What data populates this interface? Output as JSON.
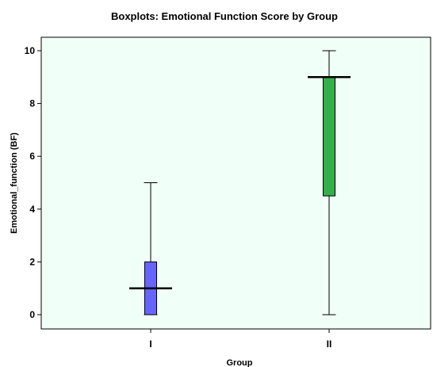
{
  "chart_data": {
    "type": "boxplot",
    "title": "Boxplots: Emotional Function Score by Group",
    "xlabel": "Group",
    "ylabel": "Emotional_function (BF)",
    "categories": [
      "I",
      "II"
    ],
    "ylim": [
      -0.5,
      10.5
    ],
    "yticks": [
      0,
      2,
      4,
      6,
      8,
      10
    ],
    "plot_background": "#f0fff8",
    "boxes": [
      {
        "category": "I",
        "min": 0,
        "q1": 0,
        "median": 1,
        "q3": 2,
        "max": 5,
        "color": "#6666ff"
      },
      {
        "category": "II",
        "min": 0,
        "q1": 4.5,
        "median": 9,
        "q3": 9,
        "max": 10,
        "color": "#33b04a"
      }
    ]
  }
}
